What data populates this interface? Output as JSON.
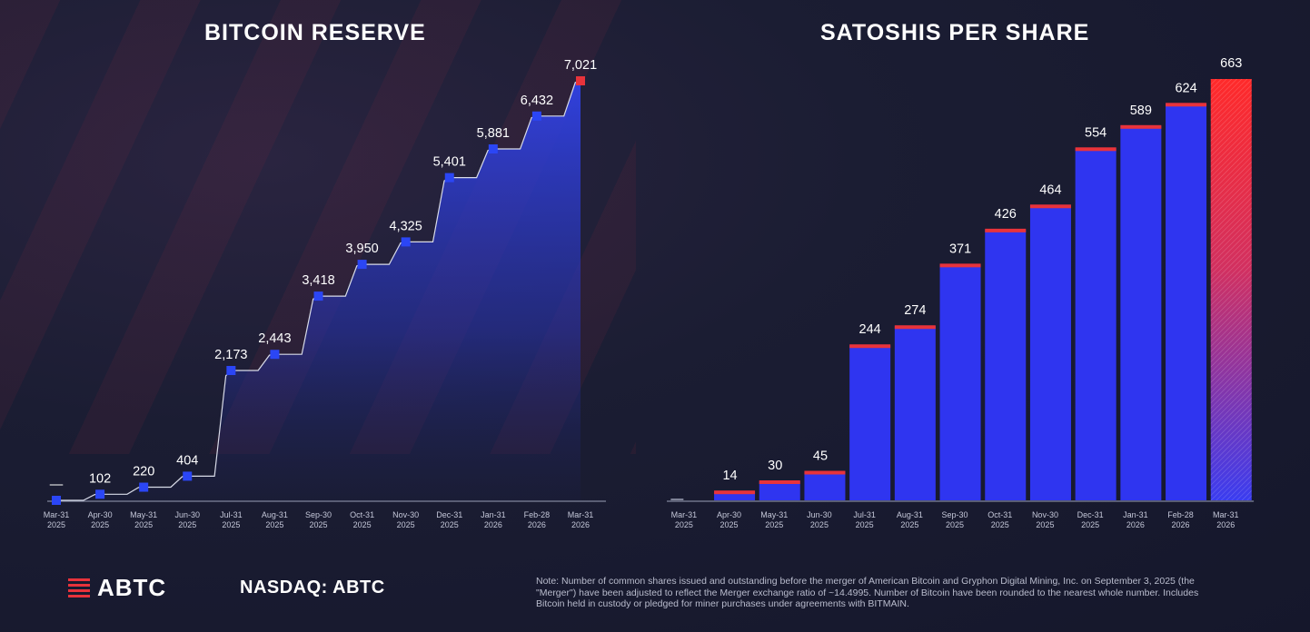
{
  "titles": {
    "left": "BITCOIN RESERVE",
    "right": "SATOSHIS PER SHARE"
  },
  "colors": {
    "accent_red": "#e8333b",
    "bar_blue": "#2f35f0",
    "marker_blue": "#2b46f5",
    "area_blue": "#2d3fd8"
  },
  "chart_data": [
    {
      "type": "line",
      "title": "BITCOIN RESERVE",
      "x": [
        "Mar-31 2025",
        "Apr-30 2025",
        "May-31 2025",
        "Jun-30 2025",
        "Jul-31 2025",
        "Aug-31 2025",
        "Sep-30 2025",
        "Oct-31 2025",
        "Nov-30 2025",
        "Dec-31 2025",
        "Jan-31 2026",
        "Feb-28 2026",
        "Mar-31 2026"
      ],
      "x_labels": [
        [
          "Mar-31",
          "2025"
        ],
        [
          "Apr-30",
          "2025"
        ],
        [
          "May-31",
          "2025"
        ],
        [
          "Jun-30",
          "2025"
        ],
        [
          "Jul-31",
          "2025"
        ],
        [
          "Aug-31",
          "2025"
        ],
        [
          "Sep-30",
          "2025"
        ],
        [
          "Oct-31",
          "2025"
        ],
        [
          "Nov-30",
          "2025"
        ],
        [
          "Dec-31",
          "2025"
        ],
        [
          "Jan-31",
          "2026"
        ],
        [
          "Feb-28",
          "2026"
        ],
        [
          "Mar-31",
          "2026"
        ]
      ],
      "values": [
        0,
        102,
        220,
        404,
        2173,
        2443,
        3418,
        3950,
        4325,
        5401,
        5881,
        6432,
        7021
      ],
      "value_labels": [
        "—",
        "102",
        "220",
        "404",
        "2,173",
        "2,443",
        "3,418",
        "3,950",
        "4,325",
        "5,401",
        "5,881",
        "6,432",
        "7,021"
      ],
      "ylim": [
        0,
        7021
      ],
      "grid": false,
      "highlight_last": true
    },
    {
      "type": "bar",
      "title": "SATOSHIS PER SHARE",
      "x_labels": [
        [
          "Mar-31",
          "2025"
        ],
        [
          "Apr-30",
          "2025"
        ],
        [
          "May-31",
          "2025"
        ],
        [
          "Jun-30",
          "2025"
        ],
        [
          "Jul-31",
          "2025"
        ],
        [
          "Aug-31",
          "2025"
        ],
        [
          "Sep-30",
          "2025"
        ],
        [
          "Oct-31",
          "2025"
        ],
        [
          "Nov-30",
          "2025"
        ],
        [
          "Dec-31",
          "2025"
        ],
        [
          "Jan-31",
          "2026"
        ],
        [
          "Feb-28",
          "2026"
        ],
        [
          "Mar-31",
          "2026"
        ]
      ],
      "values": [
        0,
        14,
        30,
        45,
        244,
        274,
        371,
        426,
        464,
        554,
        589,
        624,
        663
      ],
      "value_labels": [
        "",
        "14",
        "30",
        "45",
        "244",
        "274",
        "371",
        "426",
        "464",
        "554",
        "589",
        "624",
        "663"
      ],
      "ylim": [
        0,
        663
      ],
      "grid": false,
      "highlight_last": true
    }
  ],
  "footer": {
    "logo": "ABTC",
    "ticker": "NASDAQ: ABTC",
    "note": "Note: Number of common shares issued and outstanding before the merger of American Bitcoin and Gryphon Digital Mining, Inc. on September 3, 2025 (the \"Merger\") have been adjusted to reflect the Merger exchange ratio of ~14.4995. Number of Bitcoin have been rounded to the nearest whole number. Includes Bitcoin held in custody or pledged for miner purchases under agreements with BITMAIN."
  }
}
